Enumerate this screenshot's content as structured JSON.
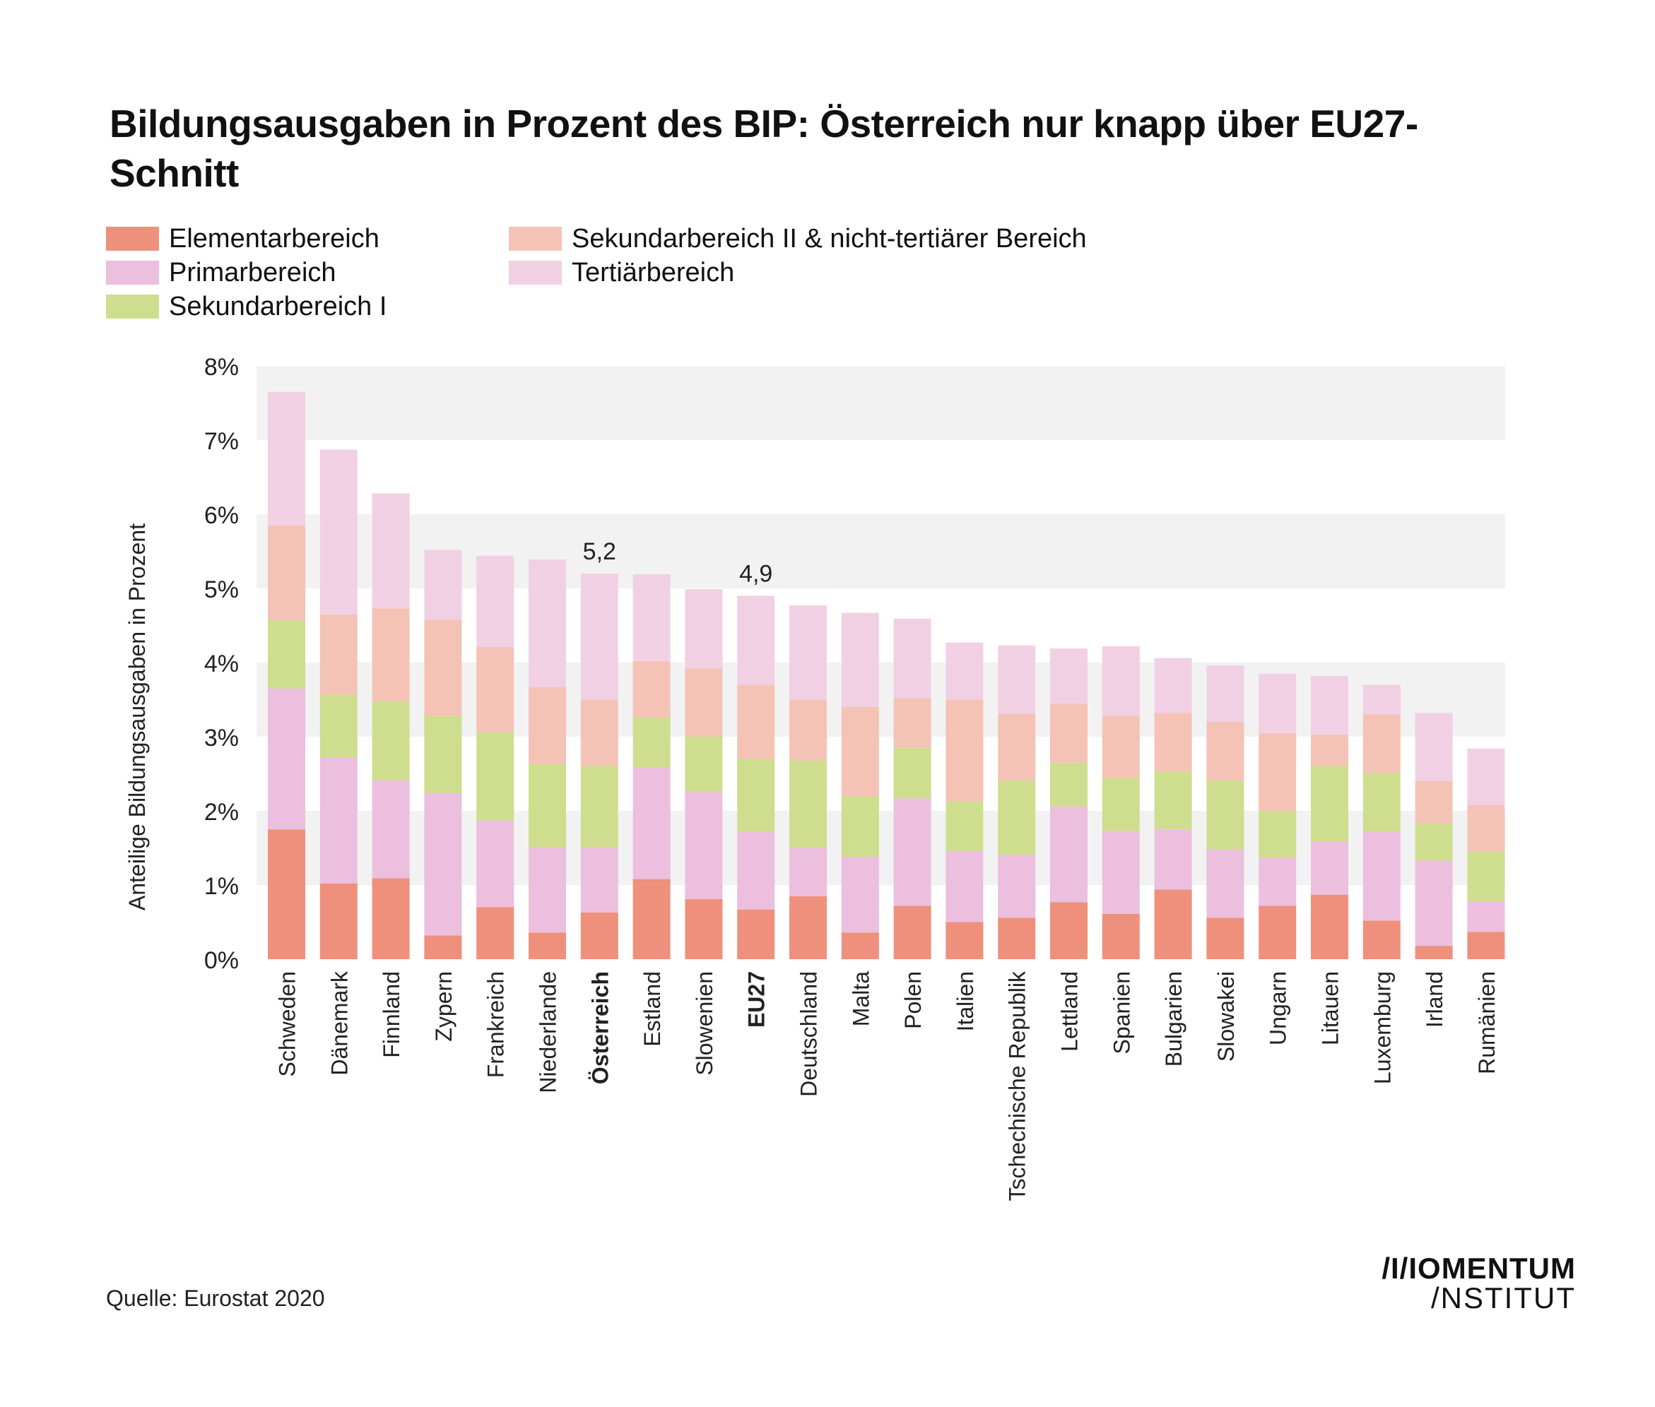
{
  "title": "Bildungsausgaben in Prozent des BIP: Österreich nur knapp über EU27-Schnitt",
  "source": "Quelle: Eurostat 2020",
  "logo": {
    "line1": "/I/IOMENTUM",
    "line2": "/NSTITUT"
  },
  "colors": {
    "elementar": "#ee907c",
    "primar": "#ebbfdd",
    "sek1": "#cfdd8e",
    "sek2": "#f4c3b6",
    "tertiar": "#f1d0e4",
    "band": "#f2f2f2"
  },
  "chart_data": {
    "type": "bar",
    "stacked": true,
    "ylabel": "Anteilige Bildungsausgaben in Prozent",
    "ylim": [
      0,
      8
    ],
    "yticks": [
      "0%",
      "1%",
      "2%",
      "3%",
      "4%",
      "5%",
      "6%",
      "7%",
      "8%"
    ],
    "categories": [
      "Schweden",
      "Dänemark",
      "Finnland",
      "Zypern",
      "Frankreich",
      "Niederlande",
      "Österreich",
      "Estland",
      "Slowenien",
      "EU27",
      "Deutschland",
      "Malta",
      "Polen",
      "Italien",
      "Tschechische Republik",
      "Lettland",
      "Spanien",
      "Bulgarien",
      "Slowakei",
      "Ungarn",
      "Litauen",
      "Luxemburg",
      "Irland",
      "Rumänien"
    ],
    "highlighted": [
      "Österreich",
      "EU27"
    ],
    "series": [
      {
        "name": "Elementarbereich",
        "color": "#ee907c",
        "values": [
          1.75,
          1.02,
          1.09,
          0.32,
          0.7,
          0.36,
          0.63,
          1.08,
          0.81,
          0.67,
          0.85,
          0.36,
          0.72,
          0.5,
          0.56,
          0.77,
          0.61,
          0.94,
          0.56,
          0.72,
          0.87,
          0.52,
          0.18,
          0.37
        ]
      },
      {
        "name": "Primarbereich",
        "color": "#ebbfdd",
        "values": [
          1.9,
          1.7,
          1.32,
          1.92,
          1.17,
          1.15,
          0.88,
          1.5,
          1.45,
          1.05,
          0.65,
          1.02,
          1.45,
          0.96,
          0.85,
          1.29,
          1.12,
          0.81,
          0.92,
          0.65,
          0.72,
          1.2,
          1.15,
          0.41
        ]
      },
      {
        "name": "Sekundarbereich I",
        "color": "#cfdd8e",
        "values": [
          0.92,
          0.85,
          1.07,
          1.04,
          1.19,
          1.12,
          1.1,
          0.68,
          0.74,
          0.98,
          1.18,
          0.82,
          0.68,
          0.67,
          1.0,
          0.59,
          0.72,
          0.78,
          0.93,
          0.63,
          1.02,
          0.79,
          0.5,
          0.67
        ]
      },
      {
        "name": "Sekundarbereich II & nicht-tertiärer Bereich",
        "color": "#f4c3b6",
        "values": [
          1.28,
          1.08,
          1.25,
          1.3,
          1.15,
          1.04,
          0.89,
          0.76,
          0.92,
          1.0,
          0.82,
          1.2,
          0.67,
          1.37,
          0.9,
          0.8,
          0.83,
          0.79,
          0.79,
          1.05,
          0.42,
          0.79,
          0.57,
          0.63
        ]
      },
      {
        "name": "Tertiärbereich",
        "color": "#f1d0e4",
        "values": [
          1.8,
          2.22,
          1.55,
          0.94,
          1.23,
          1.72,
          1.7,
          1.17,
          1.07,
          1.2,
          1.27,
          1.27,
          1.07,
          0.77,
          0.92,
          0.74,
          0.94,
          0.74,
          0.76,
          0.8,
          0.79,
          0.4,
          0.92,
          0.76
        ]
      }
    ],
    "data_labels": [
      {
        "category": "Österreich",
        "text": "5,2"
      },
      {
        "category": "EU27",
        "text": "4,9"
      }
    ],
    "legend_position": "top-left",
    "grid": "alternating horizontal bands"
  }
}
